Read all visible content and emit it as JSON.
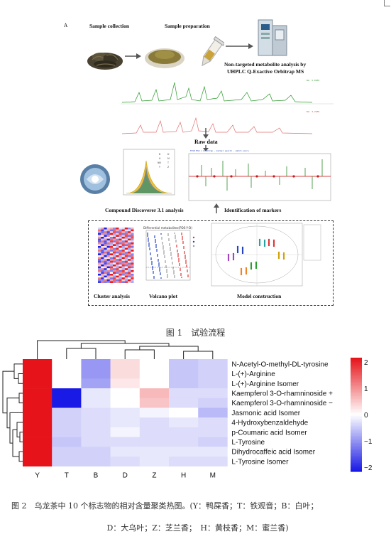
{
  "figure1": {
    "letter": "A",
    "sample_collection": "Sample collection",
    "sample_preparation": "Sample preparation",
    "analysis_line1": "Non-targeted metabolite analysis by",
    "analysis_line2": "UHPLC Q-Exactive Orbitrap MS",
    "raw_data": "Raw data",
    "compound_discoverer": "Compound Discoverer 3.1 analysis",
    "identification": "Identification of markers",
    "cluster_analysis": "Cluster analysis",
    "volcano_plot": "Volcano plot",
    "model_construction": "Model construction",
    "peak_legend": [
      "B",
      "D",
      "H",
      "M",
      "NN",
      "T",
      "Y",
      "Z"
    ],
    "volcano_title": "Differential metabolites(PDS-Y-D)",
    "caption": "图 1　试验流程"
  },
  "chart_data": {
    "type": "heatmap",
    "rows": [
      "N-Acetyl-O-methyl-DL-tyrosine",
      "L-(+)-Arginine",
      "L-(+)-Arginine Isomer",
      "Kaempferol 3-O-rhamninoside +",
      "Kaempferol 3-O-rhamninoside −",
      "Jasmonic acid Isomer",
      "4-Hydroxybenzaldehyde",
      "p-Coumaric acid Isomer",
      "L-Tyrosine",
      "Dihydrocaffeic acid Isomer",
      "L-Tyrosine Isomer"
    ],
    "columns": [
      "Y",
      "T",
      "B",
      "D",
      "Z",
      "H",
      "M"
    ],
    "values": [
      [
        2.4,
        0.0,
        -0.9,
        0.3,
        0.0,
        -0.5,
        -0.4
      ],
      [
        2.4,
        0.0,
        -0.9,
        0.3,
        0.0,
        -0.5,
        -0.4
      ],
      [
        2.4,
        0.0,
        -0.8,
        0.2,
        0.0,
        -0.5,
        -0.4
      ],
      [
        2.3,
        -2.1,
        -0.2,
        0.0,
        0.6,
        -0.3,
        -0.3
      ],
      [
        2.3,
        -2.2,
        -0.2,
        0.0,
        0.5,
        -0.3,
        -0.4
      ],
      [
        2.4,
        -0.4,
        -0.3,
        -0.2,
        -0.1,
        0.0,
        -0.6
      ],
      [
        2.4,
        -0.4,
        -0.3,
        -0.2,
        -0.3,
        -0.2,
        -0.3
      ],
      [
        2.4,
        -0.4,
        -0.3,
        -0.1,
        -0.3,
        -0.3,
        -0.3
      ],
      [
        2.4,
        -0.5,
        -0.3,
        -0.3,
        -0.3,
        -0.3,
        -0.4
      ],
      [
        2.3,
        -0.4,
        -0.4,
        -0.2,
        -0.2,
        -0.2,
        -0.2
      ],
      [
        2.3,
        -0.4,
        -0.4,
        -0.3,
        -0.2,
        -0.3,
        -0.3
      ]
    ],
    "colorbar_ticks": [
      "2",
      "1",
      "0",
      "−1",
      "−2"
    ],
    "colorbar_range": [
      -2,
      2
    ],
    "colors": {
      "low": "#1a1ae6",
      "mid": "#ffffff",
      "high": "#e6141a"
    }
  },
  "figure2": {
    "caption_line1": "图 2　乌龙茶中 10 个标志物的相对含量聚类热图。(Y：鸭屎香；T：铁观音；B：白叶；",
    "caption_line2": "D：大乌叶；Z：芝兰香；　H：黄枝香；M：蜜兰香)"
  }
}
